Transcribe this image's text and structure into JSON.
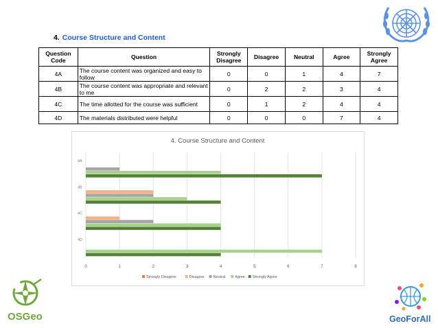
{
  "section": {
    "number": "4.",
    "title": "Course Structure and Content"
  },
  "table": {
    "headers": [
      "Question Code",
      "Question",
      "Strongly Disagree",
      "Disagree",
      "Neutral",
      "Agree",
      "Strongly Agree"
    ],
    "rows": [
      {
        "code": "4A",
        "question": "The course content was organized and easy to follow",
        "strongly_disagree": "0",
        "disagree": "0",
        "neutral": "1",
        "agree": "4",
        "strongly_agree": "7"
      },
      {
        "code": "4B",
        "question": "The course content was appropriate and relevant to me",
        "strongly_disagree": "0",
        "disagree": "2",
        "neutral": "2",
        "agree": "3",
        "strongly_agree": "4"
      },
      {
        "code": "4C",
        "question": "The time allotted for the course was sufficient",
        "strongly_disagree": "0",
        "disagree": "1",
        "neutral": "2",
        "agree": "4",
        "strongly_agree": "4"
      },
      {
        "code": "4D",
        "question": "The materials distributed were helpful",
        "strongly_disagree": "0",
        "disagree": "0",
        "neutral": "0",
        "agree": "7",
        "strongly_agree": "4"
      }
    ]
  },
  "chart_data": {
    "type": "bar",
    "orientation": "horizontal",
    "title": "4. Course Structure and Content",
    "categories": [
      "4A",
      "4B",
      "4C",
      "4D"
    ],
    "series": [
      {
        "name": "Strongly Disagree",
        "values": [
          0,
          0,
          0,
          0
        ],
        "color": "#ed7d31"
      },
      {
        "name": "Disagree",
        "values": [
          0,
          2,
          1,
          0
        ],
        "color": "#f4b183"
      },
      {
        "name": "Neutral",
        "values": [
          1,
          2,
          2,
          0
        ],
        "color": "#a5a5a5"
      },
      {
        "name": "Agree",
        "values": [
          4,
          3,
          4,
          7
        ],
        "color": "#a9d18e"
      },
      {
        "name": "Strongly Agree",
        "values": [
          7,
          4,
          4,
          4
        ],
        "color": "#548235"
      }
    ],
    "xlim": [
      0,
      8
    ],
    "xticks": [
      "0",
      "1",
      "2",
      "3",
      "4",
      "5",
      "6",
      "7",
      "8"
    ],
    "grid": true,
    "legend": "bottom"
  },
  "logos": {
    "osgeo_label": "OSGeo",
    "geoforall_label": "GeoForAll",
    "un_emblem": "united-nations-emblem",
    "osgeo_emblem": "osgeo-compass-icon",
    "geoforall_emblem": "geoforall-globe-icon"
  }
}
